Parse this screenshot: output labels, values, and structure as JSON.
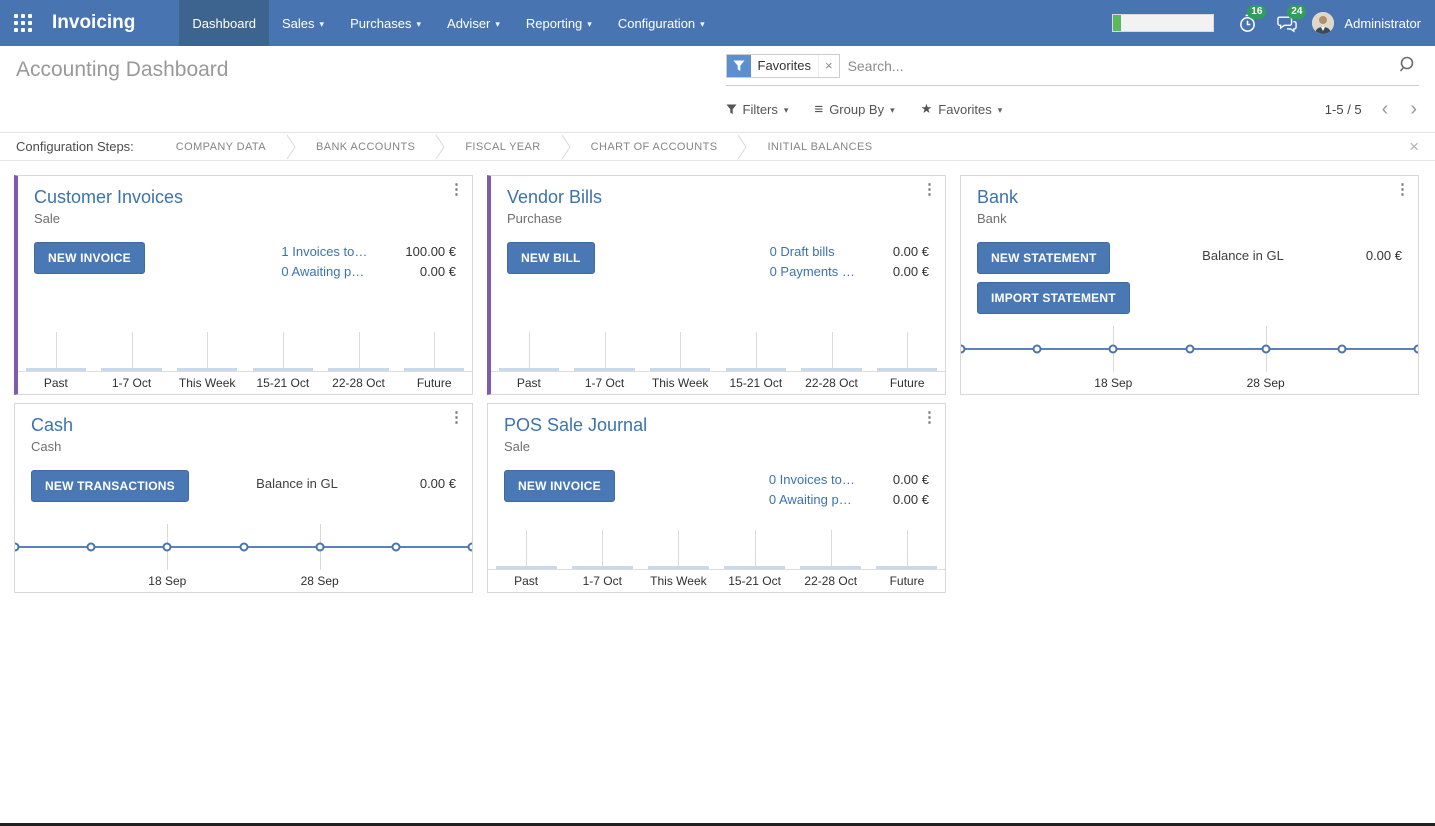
{
  "navbar": {
    "app_name": "Invoicing",
    "menu": [
      {
        "label": "Dashboard",
        "active": true
      },
      {
        "label": "Sales"
      },
      {
        "label": "Purchases"
      },
      {
        "label": "Adviser"
      },
      {
        "label": "Reporting"
      },
      {
        "label": "Configuration"
      }
    ],
    "activity_badge": "16",
    "message_badge": "24",
    "user_name": "Administrator"
  },
  "control_panel": {
    "title": "Accounting Dashboard",
    "search": {
      "facet": "Favorites",
      "placeholder": "Search..."
    },
    "filters_label": "Filters",
    "group_by_label": "Group By",
    "favorites_label": "Favorites",
    "pager": "1-5 / 5"
  },
  "config_bar": {
    "label": "Configuration Steps:",
    "steps": [
      "COMPANY DATA",
      "BANK ACCOUNTS",
      "FISCAL YEAR",
      "CHART OF ACCOUNTS",
      "INITIAL BALANCES"
    ]
  },
  "icons": {
    "kebab": "⋮",
    "close": "×",
    "facet_remove": "×",
    "caret": "▾",
    "star": "★",
    "hamburger": "≡",
    "prev": "‹",
    "next": "›"
  },
  "colors": {
    "navbar": "#4875b1",
    "navbar_active": "#3d648f",
    "accent_purple": "#8159ad",
    "primary_button": "#4a78b5",
    "link_blue": "#3b73ad",
    "badge_green": "#2f9e5a",
    "progress_green": "#5cb85c",
    "spark_line": "#5b82bb",
    "spark_bar": "#c9d9ec"
  },
  "cards": [
    {
      "title": "Customer Invoices",
      "subtitle": "Sale",
      "buttons": [
        "NEW INVOICE"
      ],
      "kpis": [
        {
          "link": "1 Invoices to…",
          "amount": "100.00 €"
        },
        {
          "link": "0 Awaiting p…",
          "amount": "0.00 €"
        }
      ],
      "chart": {
        "type": "bar",
        "categories": [
          "Past",
          "1-7 Oct",
          "This Week",
          "15-21 Oct",
          "22-28 Oct",
          "Future"
        ],
        "values": [
          0,
          0,
          0,
          0,
          0,
          0
        ]
      }
    },
    {
      "title": "Vendor Bills",
      "subtitle": "Purchase",
      "buttons": [
        "NEW BILL"
      ],
      "kpis": [
        {
          "link": "0 Draft bills",
          "amount": "0.00 €"
        },
        {
          "link": "0 Payments …",
          "amount": "0.00 €"
        }
      ],
      "chart": {
        "type": "bar",
        "categories": [
          "Past",
          "1-7 Oct",
          "This Week",
          "15-21 Oct",
          "22-28 Oct",
          "Future"
        ],
        "values": [
          0,
          0,
          0,
          0,
          0,
          0
        ]
      }
    },
    {
      "title": "Bank",
      "subtitle": "Bank",
      "buttons": [
        "NEW STATEMENT",
        "IMPORT STATEMENT"
      ],
      "balance": {
        "label": "Balance in GL",
        "amount": "0.00 €"
      },
      "chart": {
        "type": "line",
        "points": [
          0,
          0,
          0,
          0,
          0,
          0,
          0
        ],
        "xticks": [
          {
            "label": "18 Sep",
            "index": 2
          },
          {
            "label": "28 Sep",
            "index": 4
          }
        ]
      }
    },
    {
      "title": "Cash",
      "subtitle": "Cash",
      "buttons": [
        "NEW TRANSACTIONS"
      ],
      "balance": {
        "label": "Balance in GL",
        "amount": "0.00 €"
      },
      "chart": {
        "type": "line",
        "points": [
          0,
          0,
          0,
          0,
          0,
          0,
          0
        ],
        "xticks": [
          {
            "label": "18 Sep",
            "index": 2
          },
          {
            "label": "28 Sep",
            "index": 4
          }
        ]
      }
    },
    {
      "title": "POS Sale Journal",
      "subtitle": "Sale",
      "buttons": [
        "NEW INVOICE"
      ],
      "kpis": [
        {
          "link": "0 Invoices to…",
          "amount": "0.00 €"
        },
        {
          "link": "0 Awaiting p…",
          "amount": "0.00 €"
        }
      ],
      "chart": {
        "type": "bar",
        "categories": [
          "Past",
          "1-7 Oct",
          "This Week",
          "15-21 Oct",
          "22-28 Oct",
          "Future"
        ],
        "values": [
          0,
          0,
          0,
          0,
          0,
          0
        ]
      }
    }
  ]
}
